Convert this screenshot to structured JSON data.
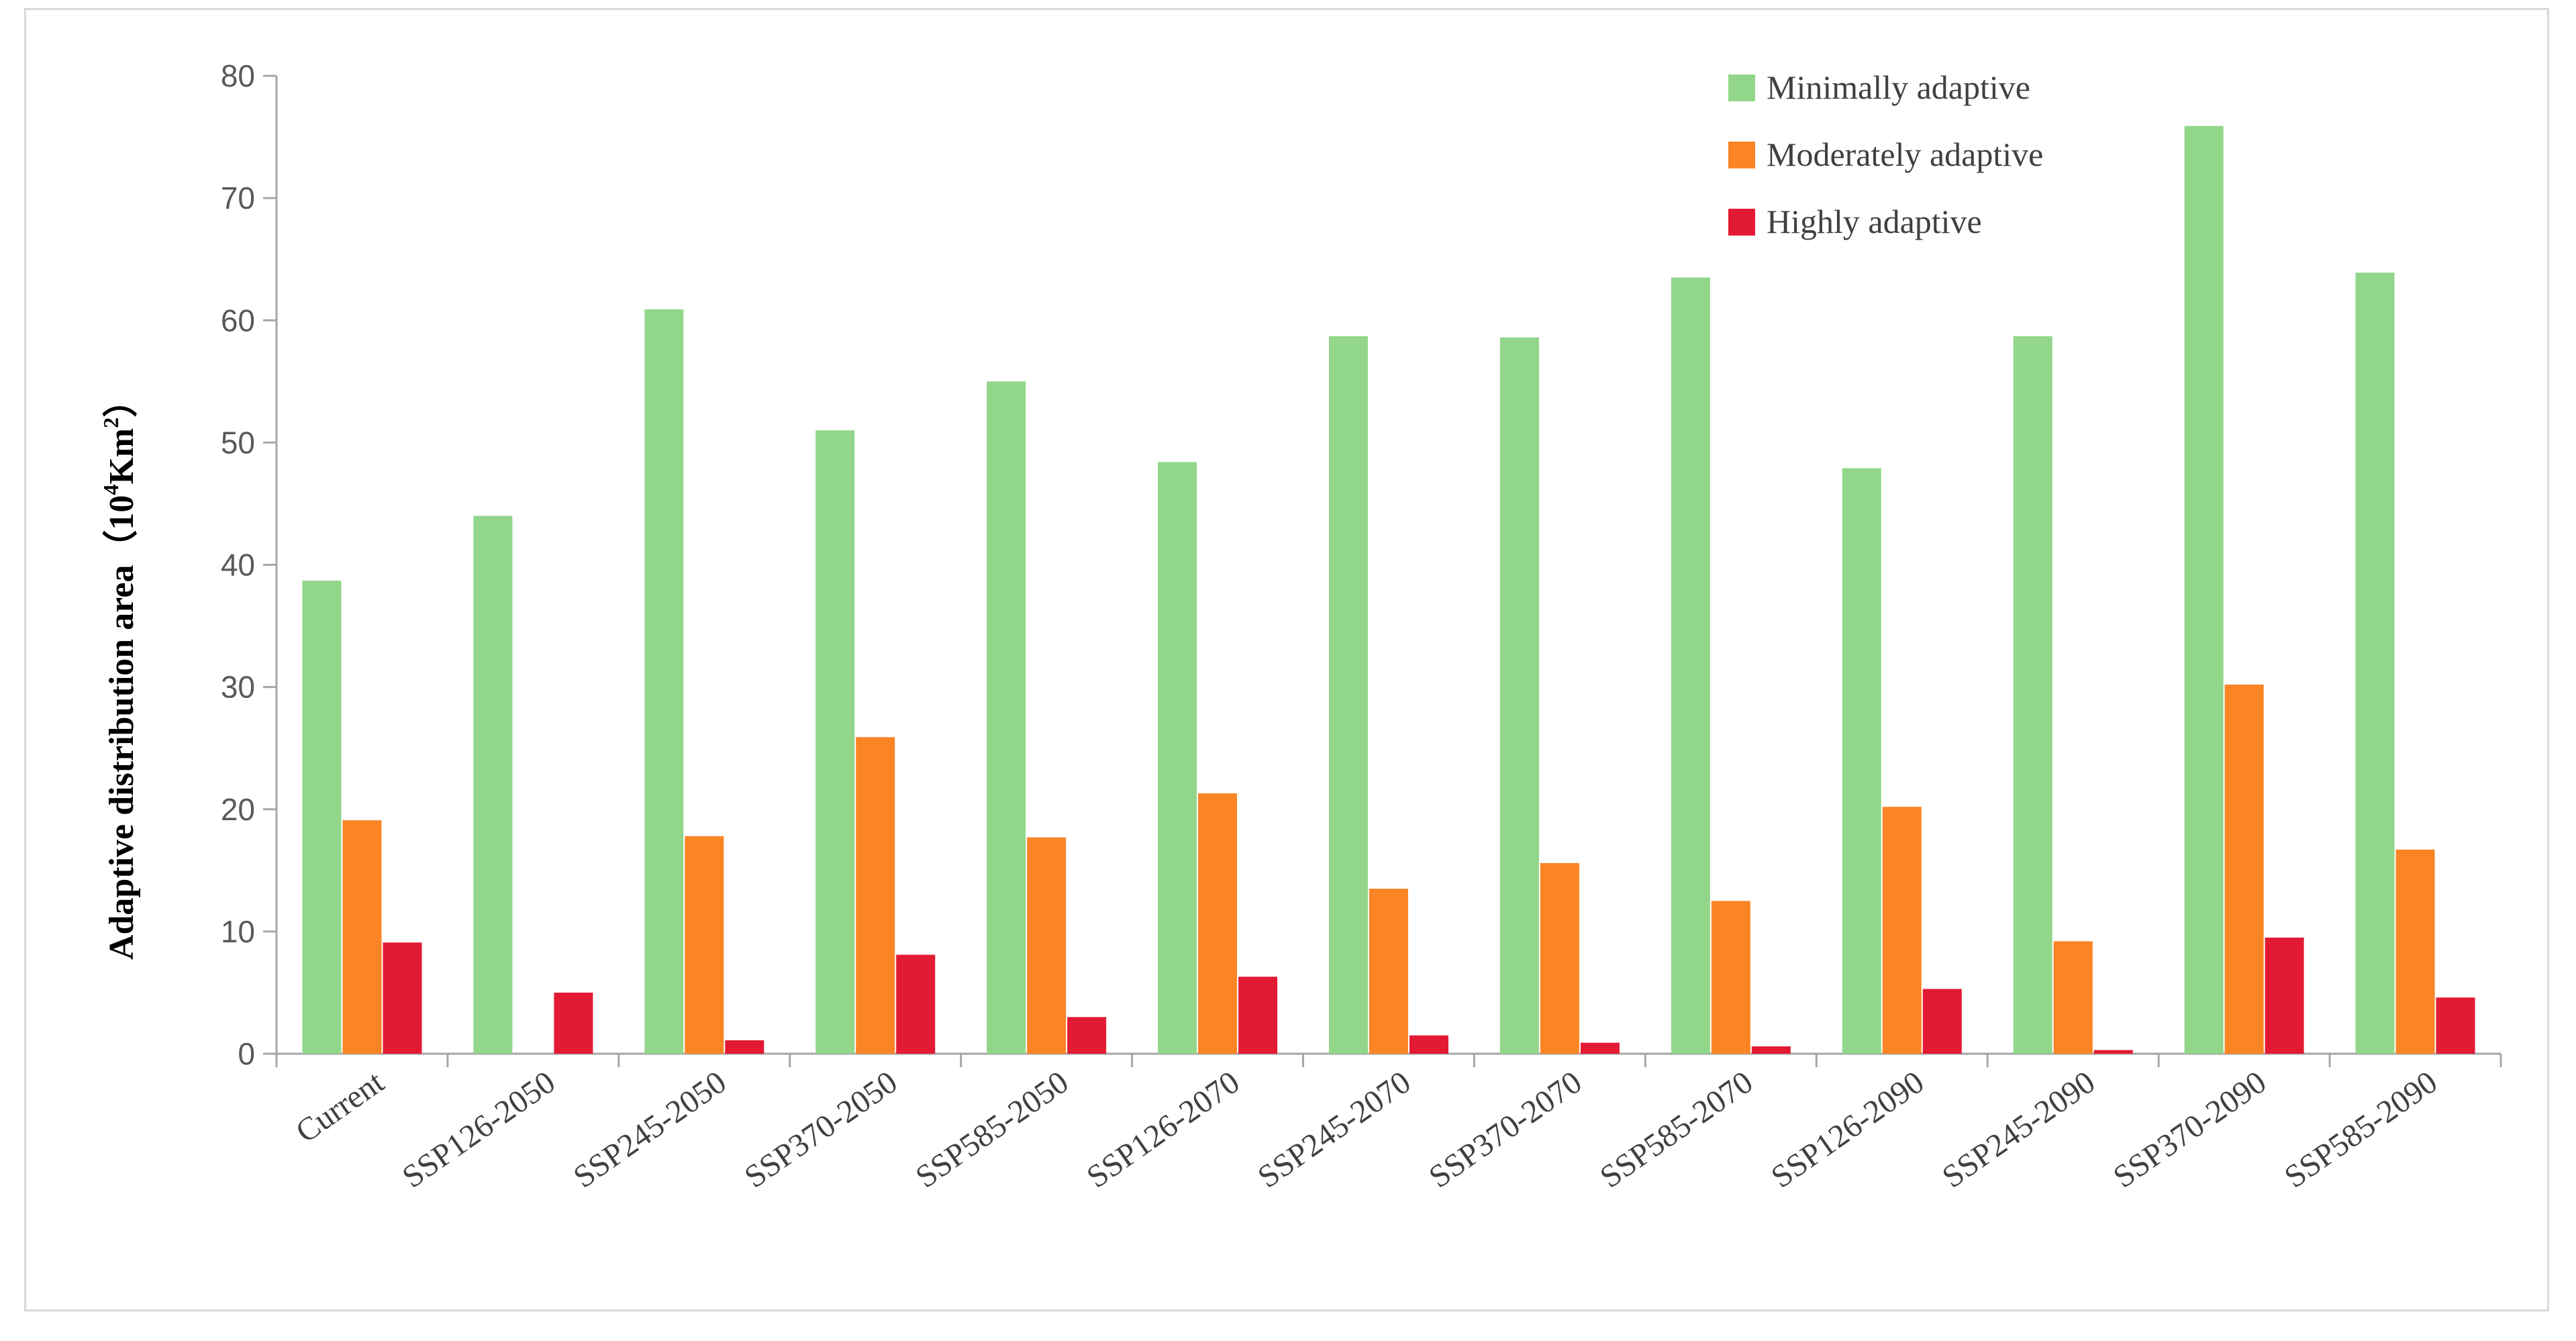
{
  "chart_data": {
    "type": "bar",
    "title": "",
    "xlabel": "",
    "ylabel": {
      "prefix": "Adaptive distribution area（",
      "base": "10",
      "base_exp": "4",
      "unit": "Km",
      "unit_exp": "2",
      "suffix": "）"
    },
    "ylim": [
      0,
      80
    ],
    "yticks": [
      0,
      10,
      20,
      30,
      40,
      50,
      60,
      70,
      80
    ],
    "legend_position": "top-right",
    "categories": [
      "Current",
      "SSP126-2050",
      "SSP245-2050",
      "SSP370-2050",
      "SSP585-2050",
      "SSP126-2070",
      "SSP245-2070",
      "SSP370-2070",
      "SSP585-2070",
      "SSP126-2090",
      "SSP245-2090",
      "SSP370-2090",
      "SSP585-2090"
    ],
    "series": [
      {
        "name": "Minimally adaptive",
        "color": "#92d68a",
        "values": [
          38.7,
          44.0,
          60.9,
          51.0,
          55.0,
          48.4,
          58.7,
          58.6,
          63.5,
          47.9,
          58.7,
          75.9,
          63.9
        ]
      },
      {
        "name": "Moderately adaptive",
        "color": "#fb8424",
        "values": [
          19.1,
          0,
          17.8,
          25.9,
          17.7,
          21.3,
          13.5,
          15.6,
          12.5,
          20.2,
          9.2,
          30.2,
          16.7
        ]
      },
      {
        "name": "Highly adaptive",
        "color": "#e31a33",
        "values": [
          9.1,
          5.0,
          1.1,
          8.1,
          3.0,
          6.3,
          1.5,
          0.9,
          0.6,
          5.3,
          0.3,
          9.5,
          4.6
        ]
      }
    ]
  }
}
